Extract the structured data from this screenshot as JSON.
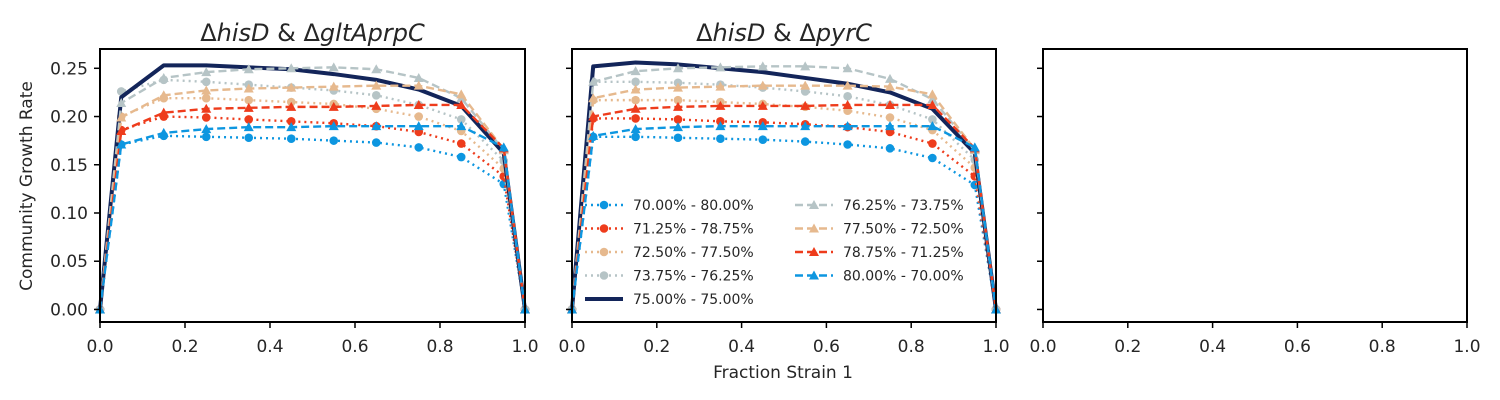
{
  "figure": {
    "ylabel": "Community Growth Rate",
    "xlabel": "Fraction Strain 1"
  },
  "chart_data": [
    {
      "type": "line",
      "title": "ΔhisD & ΔgltAprpC",
      "title_parts": [
        {
          "text": "Δ",
          "italic": false
        },
        {
          "text": "hisD",
          "italic": true
        },
        {
          "text": " & Δ",
          "italic": false
        },
        {
          "text": "gltAprpC",
          "italic": true
        }
      ],
      "xlim": [
        0.0,
        1.0
      ],
      "ylim": [
        -0.013,
        0.27
      ],
      "xticks": [
        "0.0",
        "0.2",
        "0.4",
        "0.6",
        "0.8",
        "1.0"
      ],
      "yticks": [
        "0.00",
        "0.05",
        "0.10",
        "0.15",
        "0.20",
        "0.25"
      ],
      "grid": false,
      "legend": "none",
      "x": [
        0.0,
        0.05,
        0.15,
        0.25,
        0.35,
        0.45,
        0.55,
        0.65,
        0.75,
        0.85,
        0.95,
        1.0
      ],
      "series": [
        {
          "name": "70.00% - 80.00%",
          "color": "#0d96e0",
          "dash": "dotted",
          "marker": "circle",
          "values": [
            0.0,
            0.171,
            0.18,
            0.179,
            0.178,
            0.177,
            0.175,
            0.173,
            0.168,
            0.158,
            0.13,
            0.0
          ]
        },
        {
          "name": "71.25% - 78.75%",
          "color": "#ee3c1c",
          "dash": "dotted",
          "marker": "circle",
          "values": [
            0.0,
            0.186,
            0.2,
            0.199,
            0.197,
            0.195,
            0.193,
            0.19,
            0.184,
            0.172,
            0.138,
            0.0
          ]
        },
        {
          "name": "72.50% - 77.50%",
          "color": "#e6b98e",
          "dash": "dotted",
          "marker": "circle",
          "values": [
            0.0,
            0.2,
            0.219,
            0.219,
            0.217,
            0.215,
            0.213,
            0.208,
            0.2,
            0.185,
            0.146,
            0.0
          ]
        },
        {
          "name": "73.75% - 76.25%",
          "color": "#b6c4c6",
          "dash": "dotted",
          "marker": "circle",
          "values": [
            0.0,
            0.226,
            0.238,
            0.236,
            0.233,
            0.23,
            0.227,
            0.222,
            0.212,
            0.197,
            0.154,
            0.0
          ]
        },
        {
          "name": "75.00% - 75.00%",
          "color": "#13255a",
          "dash": "solid",
          "marker": "none",
          "values": [
            0.0,
            0.22,
            0.253,
            0.253,
            0.251,
            0.249,
            0.244,
            0.238,
            0.228,
            0.211,
            0.162,
            0.0
          ]
        },
        {
          "name": "76.25% - 73.75%",
          "color": "#b6c4c6",
          "dash": "dashed",
          "marker": "triangle",
          "values": [
            0.0,
            0.214,
            0.24,
            0.246,
            0.249,
            0.25,
            0.251,
            0.249,
            0.24,
            0.219,
            0.165,
            0.0
          ]
        },
        {
          "name": "77.50% - 72.50%",
          "color": "#e6b98e",
          "dash": "dashed",
          "marker": "triangle",
          "values": [
            0.0,
            0.199,
            0.222,
            0.227,
            0.229,
            0.23,
            0.231,
            0.232,
            0.232,
            0.223,
            0.166,
            0.0
          ]
        },
        {
          "name": "78.75% - 71.25%",
          "color": "#ee3c1c",
          "dash": "dashed",
          "marker": "triangle",
          "values": [
            0.0,
            0.185,
            0.204,
            0.208,
            0.209,
            0.21,
            0.21,
            0.211,
            0.212,
            0.212,
            0.167,
            0.0
          ]
        },
        {
          "name": "80.00% - 70.00%",
          "color": "#0d96e0",
          "dash": "dashed",
          "marker": "triangle",
          "values": [
            0.0,
            0.171,
            0.183,
            0.187,
            0.189,
            0.189,
            0.19,
            0.19,
            0.19,
            0.19,
            0.168,
            0.0
          ]
        }
      ]
    },
    {
      "type": "line",
      "title": "ΔhisD & ΔpyrC",
      "title_parts": [
        {
          "text": "Δ",
          "italic": false
        },
        {
          "text": "hisD",
          "italic": true
        },
        {
          "text": " & Δ",
          "italic": false
        },
        {
          "text": "pyrC",
          "italic": true
        }
      ],
      "xlim": [
        0.0,
        1.0
      ],
      "ylim": [
        -0.013,
        0.27
      ],
      "xticks": [
        "0.0",
        "0.2",
        "0.4",
        "0.6",
        "0.8",
        "1.0"
      ],
      "yticks": [],
      "grid": false,
      "legend": "lower-left, 2 columns",
      "x": [
        0.0,
        0.05,
        0.15,
        0.25,
        0.35,
        0.45,
        0.55,
        0.65,
        0.75,
        0.85,
        0.95,
        1.0
      ],
      "series": [
        {
          "name": "70.00% - 80.00%",
          "color": "#0d96e0",
          "dash": "dotted",
          "marker": "circle",
          "values": [
            0.0,
            0.179,
            0.179,
            0.178,
            0.177,
            0.176,
            0.174,
            0.171,
            0.167,
            0.157,
            0.129,
            0.0
          ]
        },
        {
          "name": "71.25% - 78.75%",
          "color": "#ee3c1c",
          "dash": "dotted",
          "marker": "circle",
          "values": [
            0.0,
            0.198,
            0.198,
            0.197,
            0.195,
            0.194,
            0.192,
            0.189,
            0.184,
            0.172,
            0.138,
            0.0
          ]
        },
        {
          "name": "72.50% - 77.50%",
          "color": "#e6b98e",
          "dash": "dotted",
          "marker": "circle",
          "values": [
            0.0,
            0.217,
            0.217,
            0.217,
            0.215,
            0.213,
            0.21,
            0.206,
            0.199,
            0.186,
            0.147,
            0.0
          ]
        },
        {
          "name": "73.75% - 76.25%",
          "color": "#b6c4c6",
          "dash": "dotted",
          "marker": "circle",
          "values": [
            0.0,
            0.236,
            0.236,
            0.235,
            0.233,
            0.23,
            0.226,
            0.221,
            0.212,
            0.197,
            0.155,
            0.0
          ]
        },
        {
          "name": "75.00% - 75.00%",
          "color": "#13255a",
          "dash": "solid",
          "marker": "none",
          "values": [
            0.0,
            0.252,
            0.256,
            0.254,
            0.25,
            0.246,
            0.24,
            0.234,
            0.225,
            0.208,
            0.162,
            0.0
          ]
        },
        {
          "name": "76.25% - 73.75%",
          "color": "#b6c4c6",
          "dash": "dashed",
          "marker": "triangle",
          "values": [
            0.0,
            0.236,
            0.247,
            0.25,
            0.251,
            0.252,
            0.252,
            0.25,
            0.239,
            0.218,
            0.165,
            0.0
          ]
        },
        {
          "name": "77.50% - 72.50%",
          "color": "#e6b98e",
          "dash": "dashed",
          "marker": "triangle",
          "values": [
            0.0,
            0.219,
            0.228,
            0.23,
            0.231,
            0.232,
            0.232,
            0.232,
            0.231,
            0.223,
            0.166,
            0.0
          ]
        },
        {
          "name": "78.75% - 71.25%",
          "color": "#ee3c1c",
          "dash": "dashed",
          "marker": "triangle",
          "values": [
            0.0,
            0.2,
            0.208,
            0.21,
            0.211,
            0.211,
            0.211,
            0.212,
            0.212,
            0.212,
            0.167,
            0.0
          ]
        },
        {
          "name": "80.00% - 70.00%",
          "color": "#0d96e0",
          "dash": "dashed",
          "marker": "triangle",
          "values": [
            0.0,
            0.18,
            0.187,
            0.189,
            0.19,
            0.19,
            0.19,
            0.19,
            0.19,
            0.19,
            0.168,
            0.0
          ]
        }
      ]
    },
    {
      "type": "line",
      "title": "",
      "xlim": [
        0.0,
        1.0
      ],
      "ylim": [
        -0.013,
        0.27
      ],
      "xticks": [
        "0.0",
        "0.2",
        "0.4",
        "0.6",
        "0.8",
        "1.0"
      ],
      "yticks": [],
      "grid": false,
      "legend": "none",
      "x": [],
      "series": []
    }
  ]
}
